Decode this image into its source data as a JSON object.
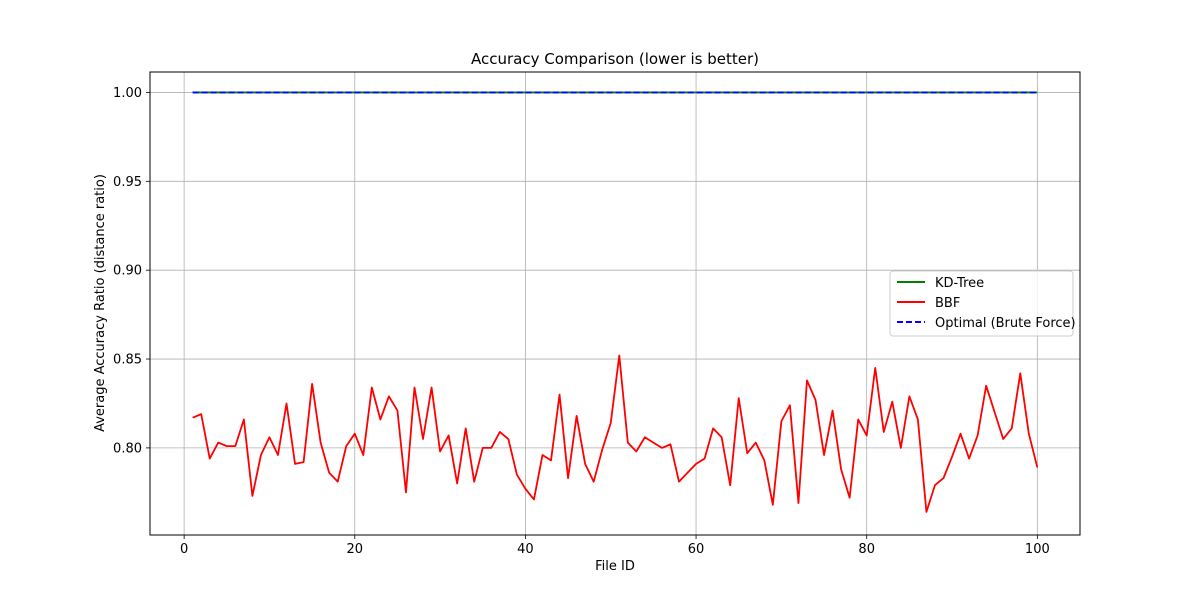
{
  "chart_data": {
    "type": "line",
    "title": "Accuracy Comparison (lower is better)",
    "xlabel": "File ID",
    "ylabel": "Average Accuracy Ratio (distance ratio)",
    "xlim": [
      -4,
      105
    ],
    "ylim": [
      0.751,
      1.0115
    ],
    "x_ticks": [
      0,
      20,
      40,
      60,
      80,
      100
    ],
    "y_ticks": [
      0.8,
      0.85,
      0.9,
      0.95,
      1.0
    ],
    "x_tick_labels": [
      "0",
      "20",
      "40",
      "60",
      "80",
      "100"
    ],
    "y_tick_labels": [
      "0.80",
      "0.85",
      "0.90",
      "0.95",
      "1.00"
    ],
    "grid": true,
    "legend_position": "center-right",
    "x": [
      1,
      2,
      3,
      4,
      5,
      6,
      7,
      8,
      9,
      10,
      11,
      12,
      13,
      14,
      15,
      16,
      17,
      18,
      19,
      20,
      21,
      22,
      23,
      24,
      25,
      26,
      27,
      28,
      29,
      30,
      31,
      32,
      33,
      34,
      35,
      36,
      37,
      38,
      39,
      40,
      41,
      42,
      43,
      44,
      45,
      46,
      47,
      48,
      49,
      50,
      51,
      52,
      53,
      54,
      55,
      56,
      57,
      58,
      59,
      60,
      61,
      62,
      63,
      64,
      65,
      66,
      67,
      68,
      69,
      70,
      71,
      72,
      73,
      74,
      75,
      76,
      77,
      78,
      79,
      80,
      81,
      82,
      83,
      84,
      85,
      86,
      87,
      88,
      89,
      90,
      91,
      92,
      93,
      94,
      95,
      96,
      97,
      98,
      99,
      100
    ],
    "series": [
      {
        "name": "KD-Tree",
        "color": "#008000",
        "style": "solid",
        "values": [
          1,
          1,
          1,
          1,
          1,
          1,
          1,
          1,
          1,
          1,
          1,
          1,
          1,
          1,
          1,
          1,
          1,
          1,
          1,
          1,
          1,
          1,
          1,
          1,
          1,
          1,
          1,
          1,
          1,
          1,
          1,
          1,
          1,
          1,
          1,
          1,
          1,
          1,
          1,
          1,
          1,
          1,
          1,
          1,
          1,
          1,
          1,
          1,
          1,
          1,
          1,
          1,
          1,
          1,
          1,
          1,
          1,
          1,
          1,
          1,
          1,
          1,
          1,
          1,
          1,
          1,
          1,
          1,
          1,
          1,
          1,
          1,
          1,
          1,
          1,
          1,
          1,
          1,
          1,
          1,
          1,
          1,
          1,
          1,
          1,
          1,
          1,
          1,
          1,
          1,
          1,
          1,
          1,
          1,
          1,
          1,
          1,
          1,
          1,
          1
        ]
      },
      {
        "name": "BBF",
        "color": "#ff0000",
        "style": "solid",
        "values": [
          0.817,
          0.819,
          0.794,
          0.803,
          0.801,
          0.801,
          0.816,
          0.773,
          0.796,
          0.806,
          0.796,
          0.825,
          0.791,
          0.792,
          0.836,
          0.803,
          0.786,
          0.781,
          0.801,
          0.808,
          0.796,
          0.834,
          0.816,
          0.829,
          0.821,
          0.775,
          0.834,
          0.805,
          0.834,
          0.798,
          0.807,
          0.78,
          0.811,
          0.781,
          0.8,
          0.8,
          0.809,
          0.805,
          0.785,
          0.777,
          0.771,
          0.796,
          0.793,
          0.83,
          0.783,
          0.818,
          0.791,
          0.781,
          0.799,
          0.814,
          0.852,
          0.803,
          0.798,
          0.806,
          0.803,
          0.8,
          0.802,
          0.781,
          0.786,
          0.791,
          0.794,
          0.811,
          0.806,
          0.779,
          0.828,
          0.797,
          0.803,
          0.793,
          0.768,
          0.815,
          0.824,
          0.769,
          0.838,
          0.827,
          0.796,
          0.821,
          0.788,
          0.772,
          0.816,
          0.807,
          0.845,
          0.809,
          0.826,
          0.8,
          0.829,
          0.816,
          0.764,
          0.779,
          0.783,
          0.795,
          0.808,
          0.794,
          0.807,
          0.835,
          0.82,
          0.805,
          0.811,
          0.842,
          0.808,
          0.789
        ]
      },
      {
        "name": "Optimal (Brute Force)",
        "color": "#0000ff",
        "style": "dashed",
        "values": [
          1,
          1,
          1,
          1,
          1,
          1,
          1,
          1,
          1,
          1,
          1,
          1,
          1,
          1,
          1,
          1,
          1,
          1,
          1,
          1,
          1,
          1,
          1,
          1,
          1,
          1,
          1,
          1,
          1,
          1,
          1,
          1,
          1,
          1,
          1,
          1,
          1,
          1,
          1,
          1,
          1,
          1,
          1,
          1,
          1,
          1,
          1,
          1,
          1,
          1,
          1,
          1,
          1,
          1,
          1,
          1,
          1,
          1,
          1,
          1,
          1,
          1,
          1,
          1,
          1,
          1,
          1,
          1,
          1,
          1,
          1,
          1,
          1,
          1,
          1,
          1,
          1,
          1,
          1,
          1,
          1,
          1,
          1,
          1,
          1,
          1,
          1,
          1,
          1,
          1,
          1,
          1,
          1,
          1,
          1,
          1,
          1,
          1,
          1,
          1
        ]
      }
    ]
  }
}
